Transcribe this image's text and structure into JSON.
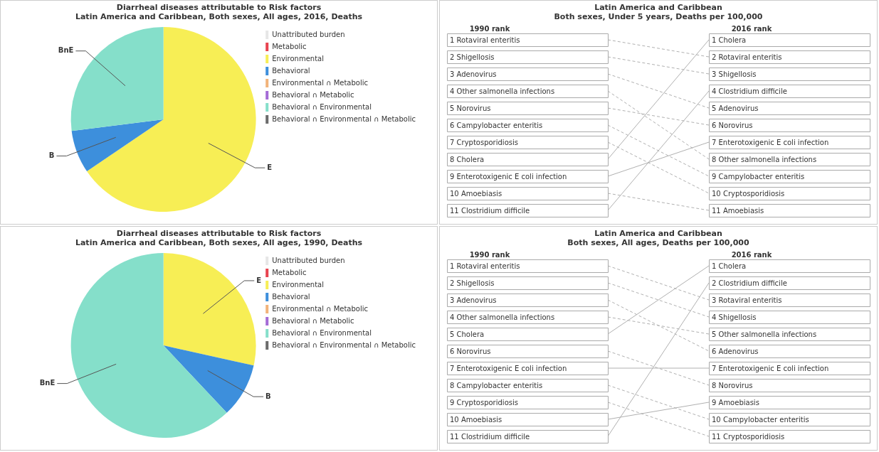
{
  "chart_data": [
    {
      "type": "pie",
      "title": "Diarrheal diseases attributable to Risk factors",
      "subtitle": "Latin America and Caribbean, Both sexes, All ages, 2016, Deaths",
      "categories": [
        "Unattributed burden",
        "Metabolic",
        "Environmental",
        "Behavioral",
        "Environmental ∩ Metabolic",
        "Behavioral ∩ Metabolic",
        "Behavioral ∩ Environmental",
        "Behavioral ∩ Environmental ∩ Metabolic"
      ],
      "values": [
        0,
        0,
        65.5,
        7.5,
        0,
        0,
        27,
        0
      ],
      "colors": [
        "#e6e6e6",
        "#e8434f",
        "#f7ee55",
        "#3d8fdc",
        "#f2b37a",
        "#a46bd6",
        "#85dfca",
        "#6b6b6b"
      ],
      "value_labels": [
        null,
        null,
        "E",
        "B",
        null,
        null,
        "BnE",
        null
      ],
      "legend": "right"
    },
    {
      "type": "other",
      "title": "Latin America and Caribbean",
      "subtitle": "Both sexes, Under 5 years, Deaths per 100,000",
      "data_labels": true,
      "categories": [
        "1990 rank",
        "2016 rank"
      ],
      "series": [
        {
          "name": "Rotaviral enteritis",
          "values": [
            1,
            2
          ]
        },
        {
          "name": "Shigellosis",
          "values": [
            2,
            3
          ]
        },
        {
          "name": "Adenovirus",
          "values": [
            3,
            5
          ]
        },
        {
          "name": "Other salmonella infections",
          "values": [
            4,
            8
          ]
        },
        {
          "name": "Norovirus",
          "values": [
            5,
            6
          ]
        },
        {
          "name": "Campylobacter enteritis",
          "values": [
            6,
            9
          ]
        },
        {
          "name": "Cryptosporidiosis",
          "values": [
            7,
            10
          ]
        },
        {
          "name": "Cholera",
          "values": [
            8,
            1
          ]
        },
        {
          "name": "Enterotoxigenic E coli infection",
          "values": [
            9,
            7
          ]
        },
        {
          "name": "Amoebiasis",
          "values": [
            10,
            11
          ]
        },
        {
          "name": "Clostridium difficile",
          "values": [
            11,
            4
          ]
        }
      ]
    },
    {
      "type": "pie",
      "title": "Diarrheal diseases attributable to Risk factors",
      "subtitle": "Latin America and Caribbean, Both sexes, All ages, 1990, Deaths",
      "categories": [
        "Unattributed burden",
        "Metabolic",
        "Environmental",
        "Behavioral",
        "Environmental ∩ Metabolic",
        "Behavioral ∩ Metabolic",
        "Behavioral ∩ Environmental",
        "Behavioral ∩ Environmental ∩ Metabolic"
      ],
      "values": [
        0,
        0,
        28.5,
        9.5,
        0,
        0,
        62,
        0
      ],
      "colors": [
        "#e6e6e6",
        "#e8434f",
        "#f7ee55",
        "#3d8fdc",
        "#f2b37a",
        "#a46bd6",
        "#85dfca",
        "#6b6b6b"
      ],
      "value_labels": [
        null,
        null,
        "E",
        "B",
        null,
        null,
        "BnE",
        null
      ],
      "legend": "right"
    },
    {
      "type": "other",
      "title": "Latin America and Caribbean",
      "subtitle": "Both sexes, All ages, Deaths per 100,000",
      "data_labels": true,
      "categories": [
        "1990 rank",
        "2016 rank"
      ],
      "series": [
        {
          "name": "Rotaviral enteritis",
          "values": [
            1,
            3
          ]
        },
        {
          "name": "Shigellosis",
          "values": [
            2,
            4
          ]
        },
        {
          "name": "Adenovirus",
          "values": [
            3,
            6
          ]
        },
        {
          "name": "Other salmonella infections",
          "values": [
            4,
            5
          ]
        },
        {
          "name": "Cholera",
          "values": [
            5,
            1
          ]
        },
        {
          "name": "Norovirus",
          "values": [
            6,
            8
          ]
        },
        {
          "name": "Enterotoxigenic E coli infection",
          "values": [
            7,
            7
          ]
        },
        {
          "name": "Campylobacter enteritis",
          "values": [
            8,
            10
          ]
        },
        {
          "name": "Cryptosporidiosis",
          "values": [
            9,
            11
          ]
        },
        {
          "name": "Amoebiasis",
          "values": [
            10,
            9
          ]
        },
        {
          "name": "Clostridium difficile",
          "values": [
            11,
            2
          ]
        }
      ]
    }
  ]
}
